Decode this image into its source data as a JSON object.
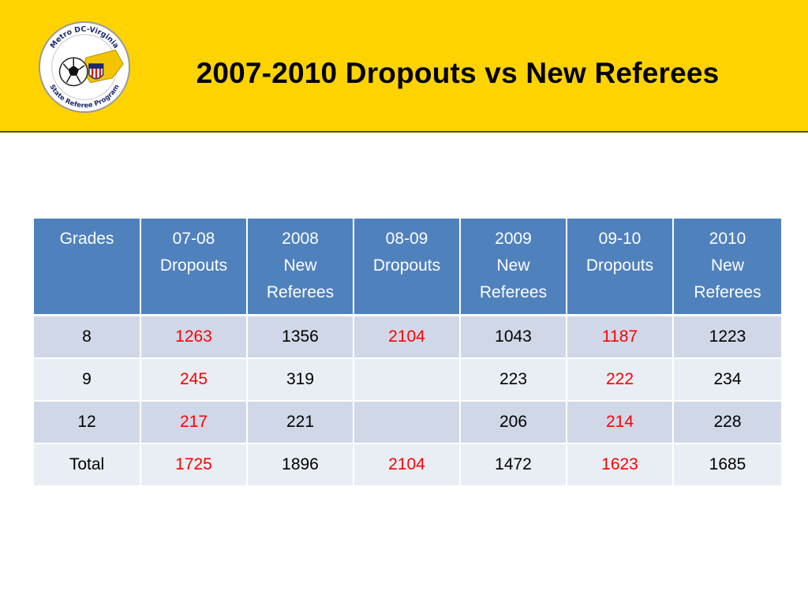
{
  "slide": {
    "title": "2007-2010 Dropouts vs New Referees",
    "logo": {
      "top_text": "Metro DC-Virginia",
      "bottom_text": "State Referee Program"
    }
  },
  "colors": {
    "header_bg": "#fed300",
    "table_header_bg": "#4f81bd",
    "row_dark": "#d0d8e8",
    "row_light": "#e9edf4",
    "dropout_text": "#ff0000"
  },
  "table": {
    "headers": [
      [
        "Grades"
      ],
      [
        "07-08",
        "Dropouts"
      ],
      [
        "2008",
        "New",
        "Referees"
      ],
      [
        "08-09",
        "Dropouts"
      ],
      [
        "2009",
        "New",
        "Referees"
      ],
      [
        "09-10",
        "Dropouts"
      ],
      [
        "2010",
        "New",
        "Referees"
      ]
    ],
    "rows": [
      {
        "grade": "8",
        "d0708": "1263",
        "n2008": "1356",
        "d0809": "2104",
        "n2009": "1043",
        "d0910": "1187",
        "n2010": "1223"
      },
      {
        "grade": "9",
        "d0708": "245",
        "n2008": "319",
        "d0809": "",
        "n2009": "223",
        "d0910": "222",
        "n2010": "234"
      },
      {
        "grade": "12",
        "d0708": "217",
        "n2008": "221",
        "d0809": "",
        "n2009": "206",
        "d0910": "214",
        "n2010": "228"
      },
      {
        "grade": "Total",
        "d0708": "1725",
        "n2008": "1896",
        "d0809": "2104",
        "n2009": "1472",
        "d0910": "1623",
        "n2010": "1685"
      }
    ]
  }
}
